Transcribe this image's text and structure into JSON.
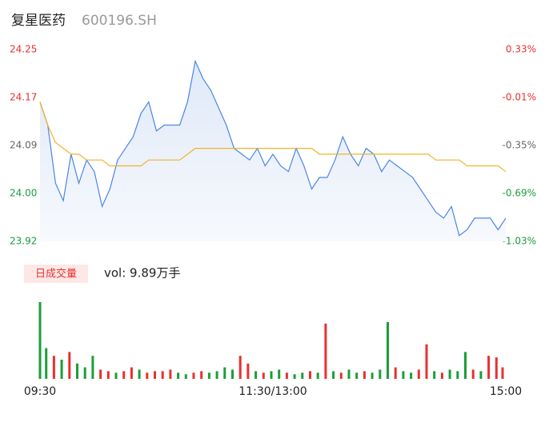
{
  "header": {
    "title": "复星医药",
    "code": "600196.SH"
  },
  "chart_data": [
    {
      "type": "line",
      "x": [
        0,
        4,
        8,
        12,
        16,
        20,
        24,
        28,
        32,
        36,
        40,
        44,
        48,
        52,
        56,
        60,
        64,
        68,
        72,
        76,
        80,
        84,
        88,
        92,
        96,
        100,
        104,
        108,
        112,
        116,
        120,
        124,
        128,
        132,
        136,
        140,
        144,
        148,
        152,
        156,
        160,
        164,
        168,
        172,
        176,
        180,
        184,
        188,
        192,
        196,
        200,
        204,
        208,
        212,
        216,
        220,
        224,
        228,
        232,
        236,
        240
      ],
      "xlim": [
        0,
        240
      ],
      "xticks": [
        {
          "value": 0,
          "label": "09:30"
        },
        {
          "value": 120,
          "label": "11:30/13:00"
        },
        {
          "value": 240,
          "label": "15:00"
        }
      ],
      "ylim": [
        23.92,
        24.25
      ],
      "yticks": [
        {
          "value": 24.25,
          "label": "24.25"
        },
        {
          "value": 24.1675,
          "label": "24.17"
        },
        {
          "value": 24.085,
          "label": "24.09"
        },
        {
          "value": 24.0025,
          "label": "24.00"
        },
        {
          "value": 23.92,
          "label": "23.92"
        }
      ],
      "ytick_colors": [
        "#e8312f",
        "#e8312f",
        "#666666",
        "#1a9e3a",
        "#1a9e3a"
      ],
      "y2lim": [
        -1.03,
        0.33
      ],
      "y2ticks": [
        {
          "value": 0.33,
          "label": "0.33%"
        },
        {
          "value": -0.01,
          "label": "-0.01%"
        },
        {
          "value": -0.35,
          "label": "-0.35%"
        },
        {
          "value": -0.69,
          "label": "-0.69%"
        },
        {
          "value": -1.03,
          "label": "-1.03%"
        }
      ],
      "y2tick_colors": [
        "#e8312f",
        "#e8312f",
        "#666666",
        "#1a9e3a",
        "#1a9e3a"
      ],
      "series": [
        {
          "name": "price",
          "color": "#4a86e8",
          "values": [
            24.16,
            24.12,
            24.02,
            23.99,
            24.07,
            24.02,
            24.06,
            24.04,
            23.98,
            24.01,
            24.06,
            24.08,
            24.1,
            24.14,
            24.16,
            24.11,
            24.12,
            24.12,
            24.12,
            24.16,
            24.23,
            24.2,
            24.18,
            24.15,
            24.12,
            24.08,
            24.07,
            24.06,
            24.08,
            24.05,
            24.07,
            24.05,
            24.04,
            24.08,
            24.05,
            24.01,
            24.03,
            24.03,
            24.06,
            24.1,
            24.07,
            24.05,
            24.08,
            24.07,
            24.04,
            24.06,
            24.05,
            24.04,
            24.03,
            24.01,
            23.99,
            23.97,
            23.96,
            23.98,
            23.93,
            23.94,
            23.96,
            23.96,
            23.96,
            23.94,
            23.96
          ]
        },
        {
          "name": "average",
          "color": "#f0b429",
          "values": [
            24.16,
            24.12,
            24.09,
            24.08,
            24.07,
            24.07,
            24.06,
            24.06,
            24.06,
            24.05,
            24.05,
            24.05,
            24.05,
            24.05,
            24.06,
            24.06,
            24.06,
            24.06,
            24.06,
            24.07,
            24.08,
            24.08,
            24.08,
            24.08,
            24.08,
            24.08,
            24.08,
            24.08,
            24.08,
            24.08,
            24.08,
            24.08,
            24.08,
            24.08,
            24.08,
            24.08,
            24.07,
            24.07,
            24.07,
            24.07,
            24.07,
            24.07,
            24.07,
            24.07,
            24.07,
            24.07,
            24.07,
            24.07,
            24.07,
            24.07,
            24.07,
            24.06,
            24.06,
            24.06,
            24.06,
            24.05,
            24.05,
            24.05,
            24.05,
            24.05,
            24.04
          ]
        }
      ]
    },
    {
      "type": "bar",
      "legend": "日成交量",
      "label": "vol: 9.89万手",
      "ylim": [
        0,
        100
      ],
      "values": [
        100,
        40,
        30,
        25,
        35,
        20,
        15,
        30,
        12,
        10,
        8,
        10,
        15,
        12,
        8,
        10,
        10,
        12,
        8,
        6,
        8,
        10,
        8,
        10,
        15,
        12,
        30,
        20,
        10,
        8,
        10,
        12,
        8,
        6,
        8,
        10,
        8,
        72,
        10,
        8,
        12,
        8,
        10,
        8,
        12,
        74,
        15,
        10,
        8,
        12,
        45,
        10,
        8,
        12,
        10,
        35,
        12,
        10,
        30,
        28,
        15
      ],
      "colors": [
        "#1a9e3a",
        "#1a9e3a",
        "#e8312f",
        "#1a9e3a",
        "#e8312f",
        "#1a9e3a",
        "#1a9e3a",
        "#1a9e3a",
        "#e8312f",
        "#e8312f",
        "#1a9e3a",
        "#e8312f",
        "#e8312f",
        "#1a9e3a",
        "#e8312f",
        "#e8312f",
        "#e8312f",
        "#e8312f",
        "#1a9e3a",
        "#1a9e3a",
        "#e8312f",
        "#e8312f",
        "#1a9e3a",
        "#1a9e3a",
        "#1a9e3a",
        "#1a9e3a",
        "#e8312f",
        "#e8312f",
        "#1a9e3a",
        "#e8312f",
        "#1a9e3a",
        "#1a9e3a",
        "#e8312f",
        "#1a9e3a",
        "#1a9e3a",
        "#e8312f",
        "#1a9e3a",
        "#e8312f",
        "#1a9e3a",
        "#e8312f",
        "#1a9e3a",
        "#1a9e3a",
        "#e8312f",
        "#1a9e3a",
        "#1a9e3a",
        "#1a9e3a",
        "#e8312f",
        "#1a9e3a",
        "#1a9e3a",
        "#e8312f",
        "#e8312f",
        "#1a9e3a",
        "#e8312f",
        "#1a9e3a",
        "#1a9e3a",
        "#1a9e3a",
        "#e8312f",
        "#1a9e3a",
        "#e8312f",
        "#e8312f",
        "#e8312f"
      ]
    }
  ]
}
